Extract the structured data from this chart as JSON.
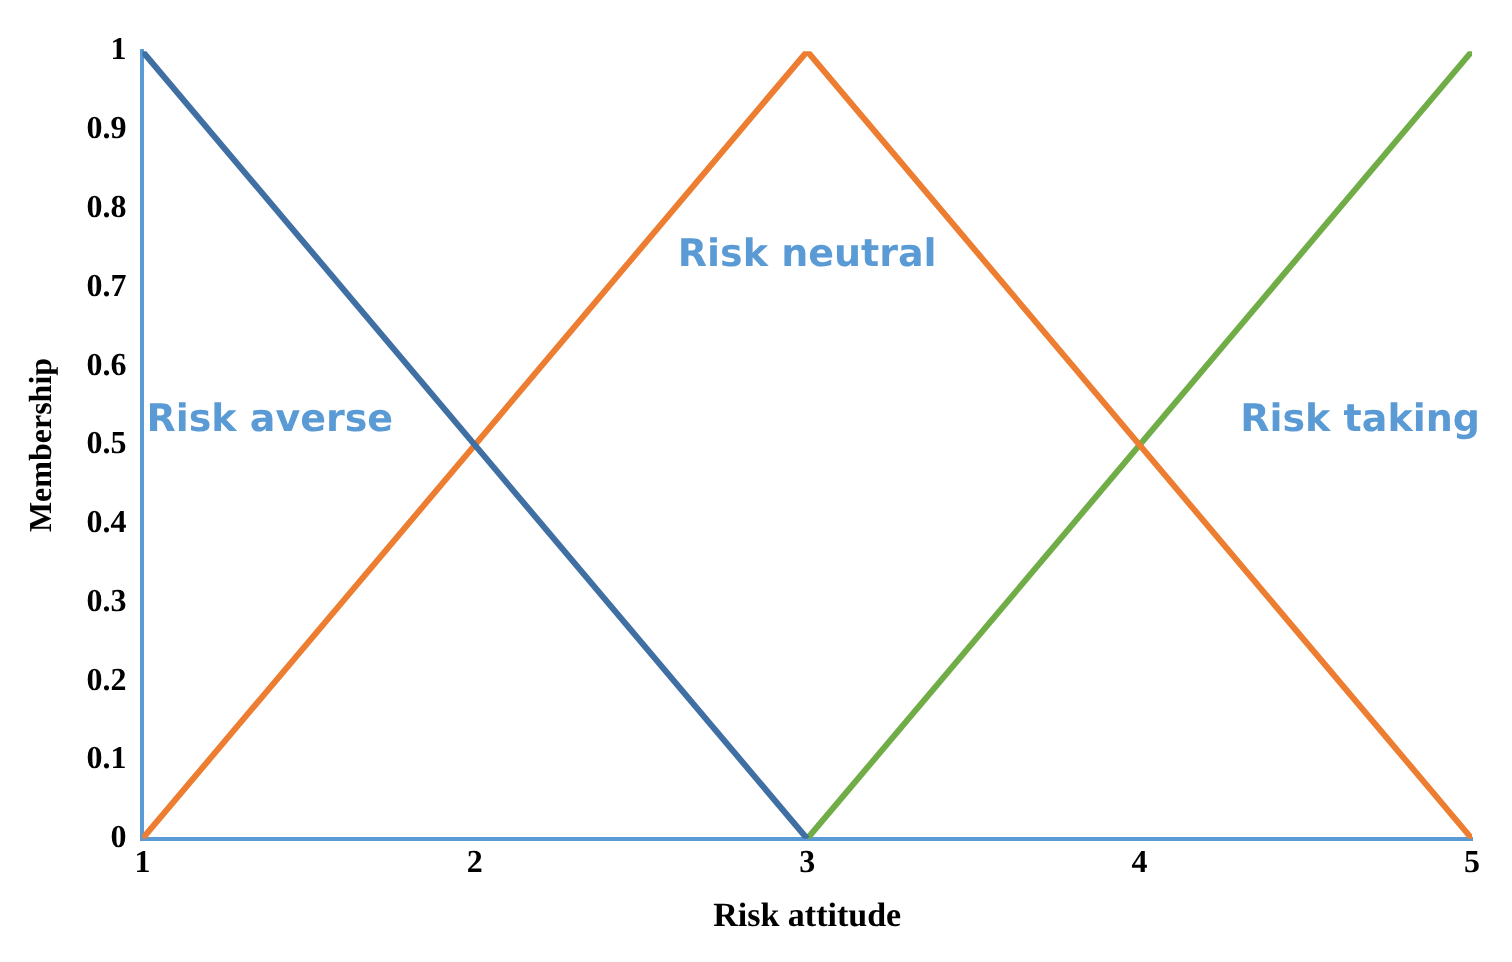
{
  "chart_data": {
    "type": "line",
    "xlabel": "Risk attitude",
    "ylabel": "Membership",
    "xlim": [
      1,
      5
    ],
    "xticks": [
      1,
      2,
      3,
      4,
      5
    ],
    "ylim": [
      0,
      1
    ],
    "yticks": [
      0,
      0.1,
      0.2,
      0.3,
      0.4,
      0.5,
      0.6,
      0.7,
      0.8,
      0.9,
      1
    ],
    "grid": false,
    "legend": false,
    "marker": "none",
    "line_style": "solid",
    "series": [
      {
        "name": "Risk averse",
        "color": "#3f6fa3",
        "x": [
          1,
          3
        ],
        "values": [
          1,
          0
        ]
      },
      {
        "name": "Risk neutral",
        "color": "#ed7d31",
        "x": [
          1,
          3,
          5
        ],
        "values": [
          0,
          1,
          0
        ]
      },
      {
        "name": "Risk taking",
        "color": "#70ad47",
        "x": [
          3,
          5
        ],
        "values": [
          0,
          1
        ]
      }
    ]
  }
}
